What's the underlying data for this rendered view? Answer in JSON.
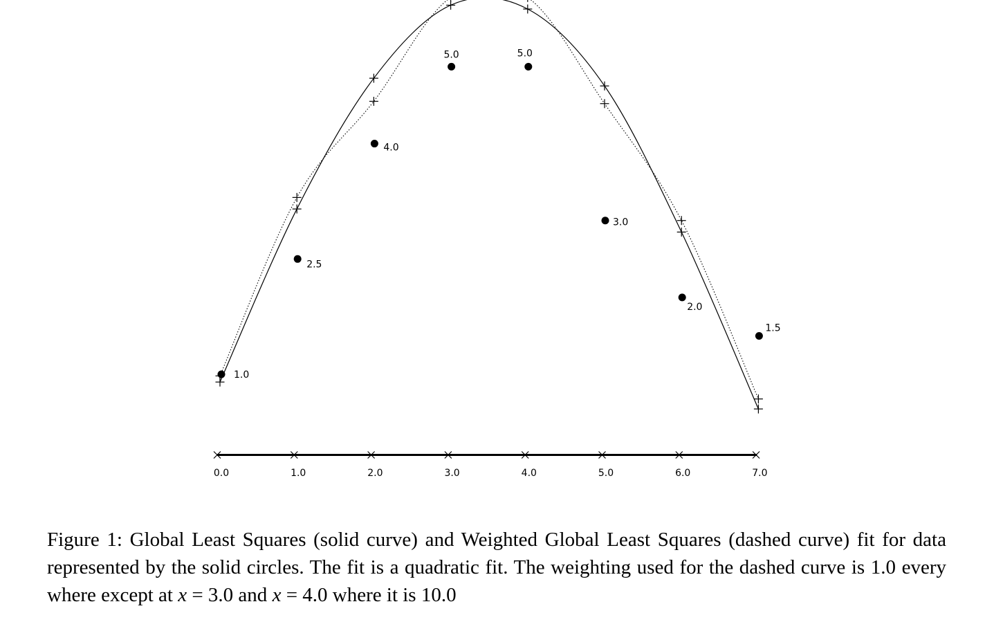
{
  "chart_data": {
    "type": "scatter",
    "title": "",
    "xlabel": "",
    "ylabel": "",
    "xlim": [
      0.0,
      7.0
    ],
    "x_ticks": [
      "0.0",
      "1.0",
      "2.0",
      "3.0",
      "4.0",
      "5.0",
      "6.0",
      "7.0"
    ],
    "data_points": [
      {
        "x": 0.0,
        "y": 1.0,
        "label": "1.0"
      },
      {
        "x": 1.0,
        "y": 2.5,
        "label": "2.5"
      },
      {
        "x": 2.0,
        "y": 4.0,
        "label": "4.0"
      },
      {
        "x": 3.0,
        "y": 5.0,
        "label": "5.0"
      },
      {
        "x": 4.0,
        "y": 5.0,
        "label": "5.0"
      },
      {
        "x": 5.0,
        "y": 3.0,
        "label": "3.0"
      },
      {
        "x": 6.0,
        "y": 2.0,
        "label": "2.0"
      },
      {
        "x": 7.0,
        "y": 1.5,
        "label": "1.5"
      }
    ],
    "series": [
      {
        "style": "solid",
        "values": [
          0.9,
          3.15,
          4.85,
          5.8,
          5.75,
          4.75,
          2.85,
          0.55
        ]
      },
      {
        "style": "dotted",
        "values": [
          0.98,
          3.3,
          4.55,
          5.9,
          5.9,
          4.52,
          3.0,
          0.68
        ]
      }
    ]
  },
  "caption": {
    "prefix": "Figure 1:",
    "text_a": " Global Least Squares (solid curve) and Weighted Global Least Squares (dashed curve) fit for data represented by the solid circles. The fit is a quadratic fit. The weighting used for the dashed curve is 1.0 every where except at ",
    "var1": "x",
    "eq1": " = 3.0 and ",
    "var2": "x",
    "eq2": " = 4.0 where it is 10.0"
  }
}
